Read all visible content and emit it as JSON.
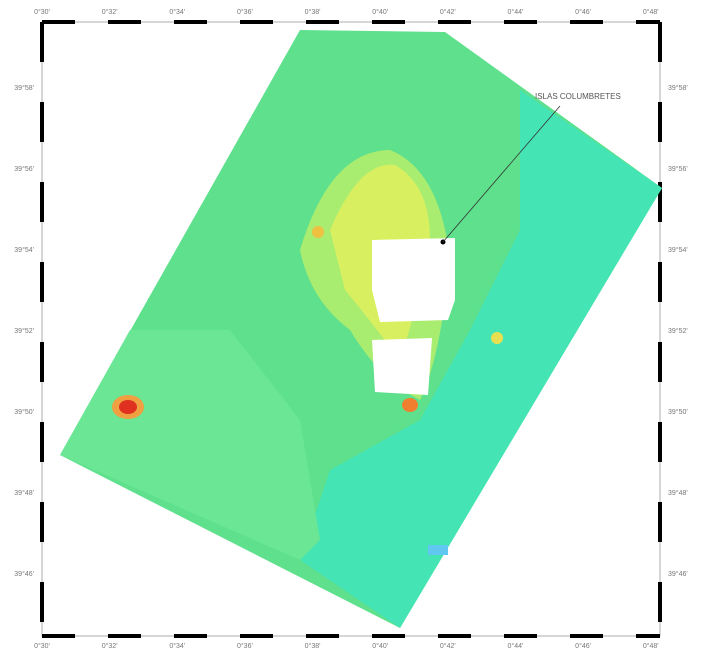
{
  "map": {
    "annotation": "ISLAS COLUMBRETES",
    "longitude_labels": [
      "0°30'",
      "0°32'",
      "0°34'",
      "0°36'",
      "0°38'",
      "0°40'",
      "0°42'",
      "0°44'",
      "0°46'",
      "0°48'"
    ],
    "latitude_labels": [
      "39°58'",
      "39°56'",
      "39°54'",
      "39°52'",
      "39°50'",
      "39°48'",
      "39°46'"
    ]
  }
}
